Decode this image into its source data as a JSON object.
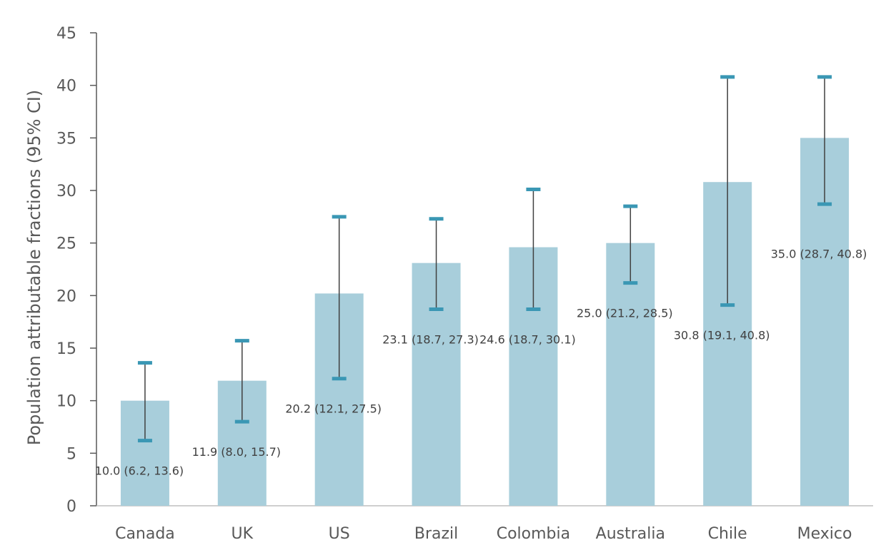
{
  "chart_data": {
    "type": "bar",
    "categories": [
      "Canada",
      "UK",
      "US",
      "Brazil",
      "Colombia",
      "Australia",
      "Chile",
      "Mexico"
    ],
    "values": [
      10.0,
      11.9,
      20.2,
      23.1,
      24.6,
      25.0,
      30.8,
      35.0
    ],
    "ci_lower": [
      6.2,
      8.0,
      12.1,
      18.7,
      18.7,
      21.2,
      19.1,
      28.7
    ],
    "ci_upper": [
      13.6,
      15.7,
      27.5,
      27.3,
      30.1,
      28.5,
      40.8,
      40.8
    ],
    "data_labels": [
      "10.0 (6.2, 13.6)",
      "11.9 (8.0, 15.7)",
      "20.2 (12.1, 27.5)",
      "23.1 (18.7, 27.3)",
      "24.6 (18.7, 30.1)",
      "25.0 (21.2, 28.5)",
      "30.8 (19.1, 40.8)",
      "35.0 (28.7, 40.8)"
    ],
    "title": "",
    "xlabel": "",
    "ylabel": "Population attributable fractions (95% CI)",
    "ylim": [
      0,
      45
    ],
    "yticks": [
      0,
      5,
      10,
      15,
      20,
      25,
      30,
      35,
      40,
      45
    ],
    "grid": false,
    "legend": "none",
    "colors": {
      "bar": "#a8cedb",
      "error_bar": "#404040",
      "cap": "#3a97b4",
      "axis": "#595959"
    }
  }
}
